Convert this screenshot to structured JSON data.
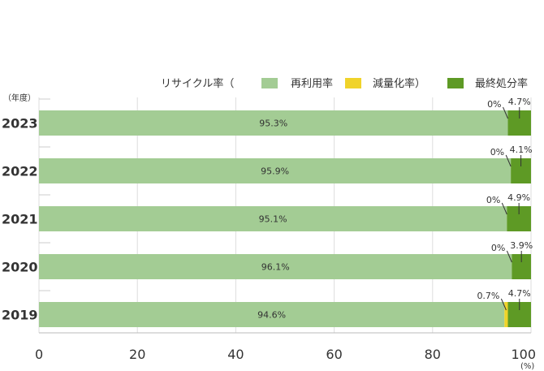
{
  "chart_data": {
    "type": "bar",
    "orientation": "horizontal",
    "stacked": true,
    "categories": [
      "2023",
      "2022",
      "2021",
      "2020",
      "2019"
    ],
    "category_axis_label": "（年度）",
    "value_axis_unit": "(%)",
    "xlim": [
      0,
      100
    ],
    "xticks": [
      0,
      20,
      40,
      60,
      80,
      100
    ],
    "grid": true,
    "legend_title": "リサイクル率（",
    "legend_placement": "top-right",
    "series": [
      {
        "name": "再利用率",
        "color": "#a3cc94",
        "values": [
          95.3,
          95.9,
          95.1,
          96.1,
          94.6
        ],
        "labels": [
          "95.3%",
          "95.9%",
          "95.1%",
          "96.1%",
          "94.6%"
        ]
      },
      {
        "name": "減量化率）",
        "color": "#f0d32a",
        "values": [
          0,
          0,
          0,
          0,
          0.7
        ],
        "labels": [
          "0%",
          "0%",
          "0%",
          "0%",
          "0.7%"
        ]
      },
      {
        "name": "最終処分率",
        "color": "#5e9a25",
        "values": [
          4.7,
          4.1,
          4.9,
          3.9,
          4.7
        ],
        "labels": [
          "4.7%",
          "4.1%",
          "4.9%",
          "3.9%",
          "4.7%"
        ]
      }
    ]
  }
}
